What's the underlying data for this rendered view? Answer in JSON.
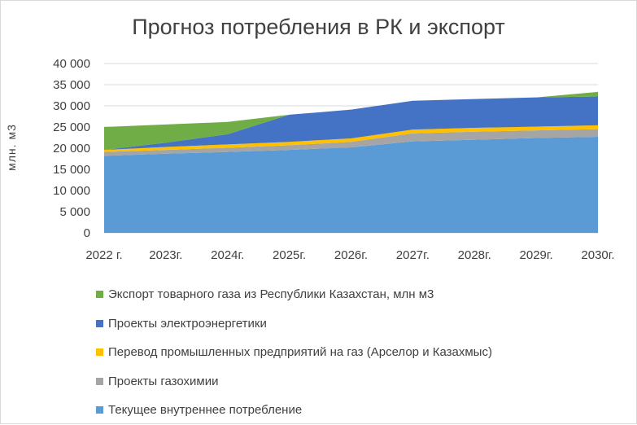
{
  "title": "Прогноз потребления в РК и экспорт",
  "chart_data": {
    "type": "area",
    "stacked": true,
    "title": "Прогноз потребления в РК и экспорт",
    "xlabel": "",
    "ylabel": "млн. м3",
    "ylim": [
      0,
      40000
    ],
    "ytick_labels": [
      "0",
      "5 000",
      "10 000",
      "15 000",
      "20 000",
      "25 000",
      "30 000",
      "35 000",
      "40 000"
    ],
    "ytick_values": [
      0,
      5000,
      10000,
      15000,
      20000,
      25000,
      30000,
      35000,
      40000
    ],
    "categories": [
      "2022 г.",
      "2023г.",
      "2024г.",
      "2025г.",
      "2026г.",
      "2027г.",
      "2028г.",
      "2029г.",
      "2030г."
    ],
    "grid": "horizontal",
    "legend_position": "bottom",
    "series": [
      {
        "name": "Текущее внутреннее потребление",
        "color": "#5B9BD5",
        "values": [
          18200,
          18700,
          19100,
          19600,
          20200,
          21600,
          22000,
          22400,
          22700
        ]
      },
      {
        "name": "Проекты газохимии",
        "color": "#A5A5A5",
        "values": [
          900,
          900,
          1000,
          1100,
          1300,
          1900,
          1900,
          1800,
          1800
        ]
      },
      {
        "name": "Перевод промышленных предприятий на газ (Арселор и Казахмыс)",
        "color": "#FFC000",
        "values": [
          500,
          700,
          800,
          800,
          800,
          900,
          900,
          900,
          900
        ]
      },
      {
        "name": "Проекты электроэнергетики",
        "color": "#4472C4",
        "values": [
          0,
          1000,
          2400,
          6400,
          6800,
          6800,
          6800,
          6900,
          6800
        ]
      },
      {
        "name": "Экспорт товарного газа из Республики Казахстан, млн м3",
        "color": "#70AD47",
        "values": [
          5400,
          4300,
          2900,
          0,
          0,
          0,
          0,
          0,
          1100
        ]
      }
    ]
  },
  "legend_order": [
    4,
    3,
    2,
    1,
    0
  ]
}
